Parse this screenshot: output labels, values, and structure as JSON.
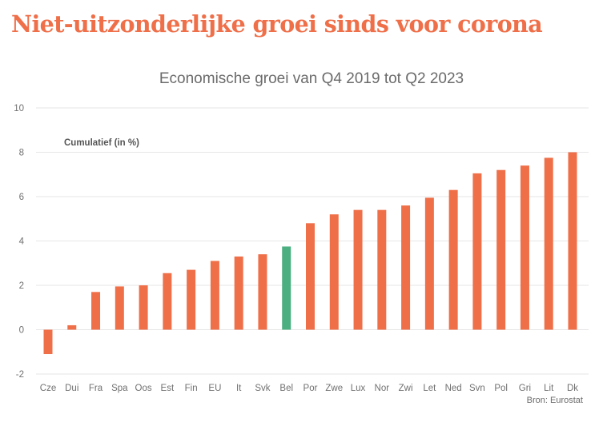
{
  "headline": "Niet-uitzonderlijke groei sinds voor corona",
  "source": "Bron: Eurostat",
  "colors": {
    "bar": "#ef6f49",
    "highlight": "#4caf82",
    "headline": "#ef6f49",
    "grid": "#e6e6e6"
  },
  "chart_data": {
    "type": "bar",
    "title": "Economische groei van Q4 2019 tot Q2 2023",
    "annotation": "Cumulatief (in %)",
    "xlabel": "",
    "ylabel": "",
    "ylim": [
      -2,
      10
    ],
    "yticks": [
      -2,
      0,
      2,
      4,
      6,
      8,
      10
    ],
    "grid": true,
    "highlight_category": "Bel",
    "categories": [
      "Cze",
      "Dui",
      "Fra",
      "Spa",
      "Oos",
      "Est",
      "Fin",
      "EU",
      "It",
      "Svk",
      "Bel",
      "Por",
      "Zwe",
      "Lux",
      "Nor",
      "Zwi",
      "Let",
      "Ned",
      "Svn",
      "Pol",
      "Gri",
      "Lit",
      "Dk"
    ],
    "values": [
      -1.1,
      0.2,
      1.7,
      1.95,
      2.0,
      2.55,
      2.7,
      3.1,
      3.3,
      3.4,
      3.75,
      4.8,
      5.2,
      5.4,
      5.4,
      5.6,
      5.95,
      6.3,
      7.05,
      7.2,
      7.4,
      7.75,
      8.0
    ]
  }
}
